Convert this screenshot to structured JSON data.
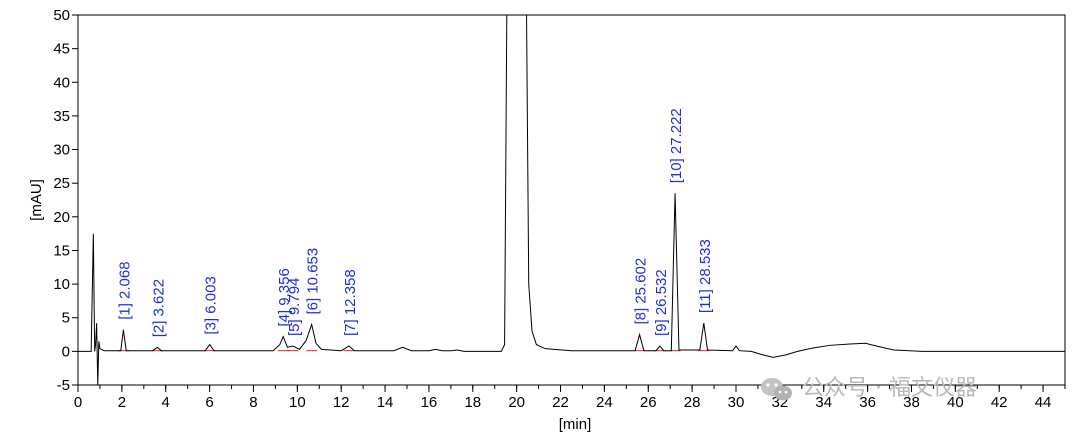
{
  "chart_data": {
    "type": "line",
    "xlabel": "[min]",
    "ylabel": "[mAU]",
    "xlim": [
      0,
      45
    ],
    "ylim": [
      -5,
      50
    ],
    "x_ticks": [
      0,
      2,
      4,
      6,
      8,
      10,
      12,
      14,
      16,
      18,
      20,
      22,
      24,
      26,
      28,
      30,
      32,
      34,
      36,
      38,
      40,
      42,
      44
    ],
    "y_ticks": [
      -5,
      0,
      5,
      10,
      15,
      20,
      25,
      30,
      35,
      40,
      45,
      50
    ],
    "grid": false,
    "colors": {
      "trace": "#000000",
      "peak_label": "#1f2fd6",
      "baseline": "#e02020",
      "watermark": "#b9b9b9"
    },
    "peaks": [
      {
        "label": "[1]  2.068",
        "rt": 2.068,
        "height": 3.2
      },
      {
        "label": "[2]  3.622",
        "rt": 3.622,
        "height": 0.6
      },
      {
        "label": "[3]  6.003",
        "rt": 6.003,
        "height": 1.0
      },
      {
        "label": "[4]  9.356",
        "rt": 9.356,
        "height": 2.2
      },
      {
        "label": "[5]  9.794",
        "rt": 9.794,
        "height": 0.8
      },
      {
        "label": "[6]  10.653",
        "rt": 10.653,
        "height": 4.0
      },
      {
        "label": "[7]  12.358",
        "rt": 12.358,
        "height": 0.8
      },
      {
        "label": "[8]  25.602",
        "rt": 25.602,
        "height": 2.5
      },
      {
        "label": "[9]  26.532",
        "rt": 26.532,
        "height": 0.8
      },
      {
        "label": "[10]  27.222",
        "rt": 27.222,
        "height": 23.5
      },
      {
        "label": "[11]  28.533",
        "rt": 28.533,
        "height": 4.2
      }
    ],
    "trace": [
      [
        0.0,
        0.0
      ],
      [
        0.6,
        0.0
      ],
      [
        0.7,
        17.5
      ],
      [
        0.76,
        0.0
      ],
      [
        0.8,
        1.0
      ],
      [
        0.85,
        4.2
      ],
      [
        0.9,
        -5.0
      ],
      [
        0.95,
        1.5
      ],
      [
        1.0,
        0.4
      ],
      [
        1.2,
        0.1
      ],
      [
        1.6,
        0.1
      ],
      [
        1.95,
        0.1
      ],
      [
        2.068,
        3.2
      ],
      [
        2.2,
        0.1
      ],
      [
        3.4,
        0.1
      ],
      [
        3.622,
        0.6
      ],
      [
        3.8,
        0.1
      ],
      [
        5.8,
        0.1
      ],
      [
        6.003,
        1.0
      ],
      [
        6.2,
        0.1
      ],
      [
        8.9,
        0.1
      ],
      [
        9.2,
        1.0
      ],
      [
        9.356,
        2.2
      ],
      [
        9.55,
        0.6
      ],
      [
        9.794,
        0.8
      ],
      [
        10.1,
        0.3
      ],
      [
        10.4,
        1.6
      ],
      [
        10.653,
        4.0
      ],
      [
        10.85,
        1.2
      ],
      [
        11.1,
        0.3
      ],
      [
        12.0,
        0.1
      ],
      [
        12.358,
        0.8
      ],
      [
        12.6,
        0.1
      ],
      [
        14.4,
        0.1
      ],
      [
        14.8,
        0.6
      ],
      [
        15.2,
        0.1
      ],
      [
        16.0,
        0.1
      ],
      [
        16.3,
        0.3
      ],
      [
        16.6,
        0.1
      ],
      [
        17.0,
        0.1
      ],
      [
        17.3,
        0.2
      ],
      [
        17.6,
        0.0
      ],
      [
        19.3,
        0.0
      ],
      [
        19.45,
        1.0
      ],
      [
        19.55,
        50.0
      ],
      [
        20.45,
        50.0
      ],
      [
        20.55,
        10.0
      ],
      [
        20.7,
        3.0
      ],
      [
        20.9,
        1.0
      ],
      [
        21.3,
        0.4
      ],
      [
        22.5,
        0.1
      ],
      [
        25.4,
        0.1
      ],
      [
        25.602,
        2.5
      ],
      [
        25.8,
        0.1
      ],
      [
        26.35,
        0.1
      ],
      [
        26.532,
        0.8
      ],
      [
        26.7,
        0.1
      ],
      [
        27.05,
        0.1
      ],
      [
        27.222,
        23.5
      ],
      [
        27.4,
        0.2
      ],
      [
        28.35,
        0.2
      ],
      [
        28.533,
        4.2
      ],
      [
        28.7,
        0.2
      ],
      [
        29.85,
        0.1
      ],
      [
        30.0,
        0.8
      ],
      [
        30.15,
        0.1
      ],
      [
        30.7,
        0.0
      ],
      [
        31.2,
        -0.5
      ],
      [
        31.7,
        -0.9
      ],
      [
        32.3,
        -0.5
      ],
      [
        32.8,
        0.0
      ],
      [
        33.5,
        0.5
      ],
      [
        34.3,
        0.9
      ],
      [
        35.2,
        1.1
      ],
      [
        35.9,
        1.2
      ],
      [
        36.4,
        0.8
      ],
      [
        37.2,
        0.2
      ],
      [
        38.5,
        0.0
      ],
      [
        45.0,
        0.0
      ]
    ]
  },
  "watermark": "公众号 · 福文仪器"
}
